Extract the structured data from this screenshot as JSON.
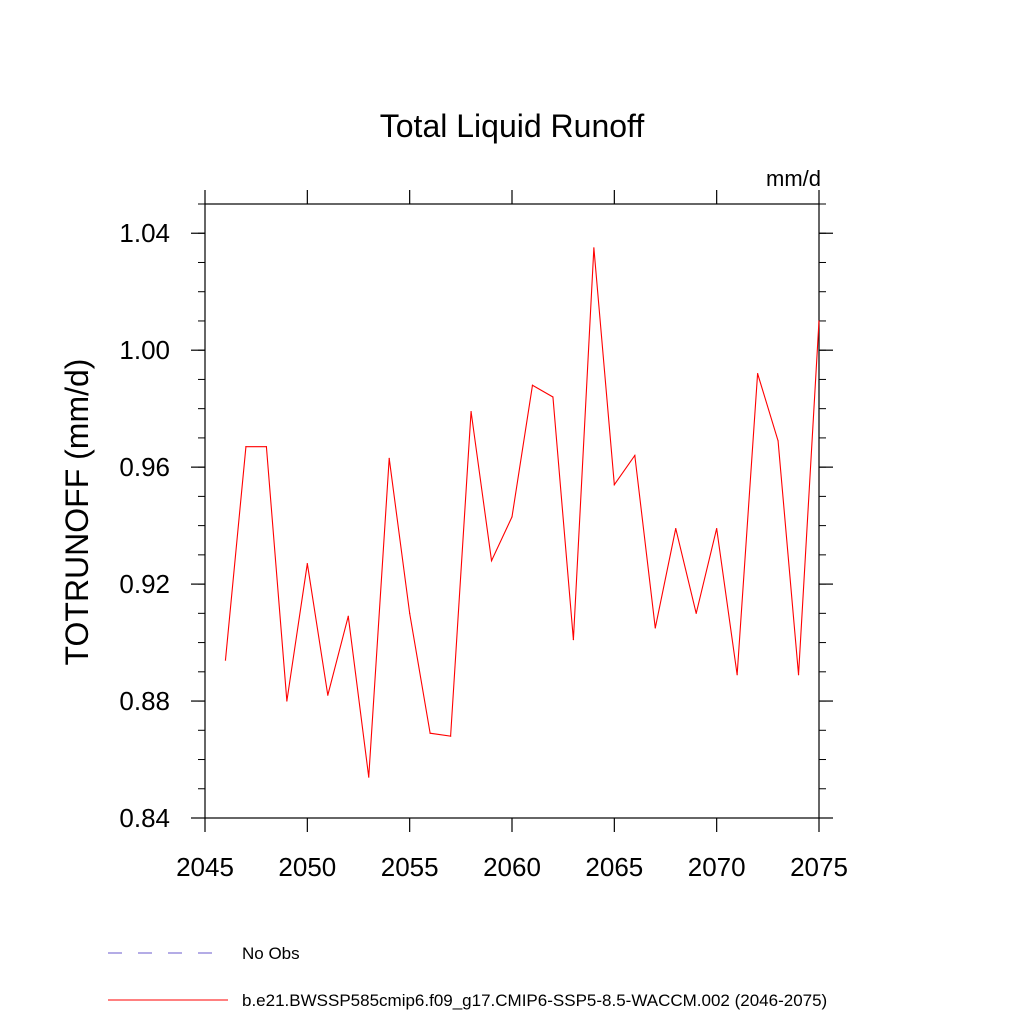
{
  "chart_data": {
    "type": "line",
    "title": "Total Liquid Runoff",
    "units_label": "mm/d",
    "xlabel": "",
    "ylabel": "TOTRUNOFF  (mm/d)",
    "xlim": [
      2045,
      2075
    ],
    "ylim": [
      0.84,
      1.05
    ],
    "x_ticks": [
      2045,
      2050,
      2055,
      2060,
      2065,
      2070,
      2075
    ],
    "x_tick_labels": [
      "2045",
      "2050",
      "2055",
      "2060",
      "2065",
      "2070",
      "2075"
    ],
    "y_ticks": [
      0.84,
      0.88,
      0.92,
      0.96,
      1.0,
      1.04
    ],
    "y_tick_labels": [
      "0.84",
      "0.88",
      "0.92",
      "0.96",
      "1.00",
      "1.04"
    ],
    "grid": false,
    "series": [
      {
        "name": "b.e21.BWSSP585cmip6.f09_g17.CMIP6-SSP5-8.5-WACCM.002 (2046-2075)",
        "color": "#ff0000",
        "x": [
          2046,
          2047,
          2048,
          2049,
          2050,
          2051,
          2052,
          2053,
          2054,
          2055,
          2056,
          2057,
          2058,
          2059,
          2060,
          2061,
          2062,
          2063,
          2064,
          2065,
          2066,
          2067,
          2068,
          2069,
          2070,
          2071,
          2072,
          2073,
          2074,
          2075
        ],
        "values": [
          0.894,
          0.967,
          0.967,
          0.88,
          0.927,
          0.882,
          0.909,
          0.854,
          0.963,
          0.91,
          0.869,
          0.868,
          0.979,
          0.928,
          0.943,
          0.988,
          0.984,
          0.901,
          1.035,
          0.954,
          0.964,
          0.905,
          0.939,
          0.91,
          0.939,
          0.889,
          0.992,
          0.969,
          0.889,
          1.01
        ]
      }
    ],
    "legend": [
      {
        "label": "No Obs",
        "color": "#6a5acd",
        "style": "dashed"
      },
      {
        "label": "b.e21.BWSSP585cmip6.f09_g17.CMIP6-SSP5-8.5-WACCM.002 (2046-2075)",
        "color": "#ff0000",
        "style": "solid"
      }
    ],
    "legend_position": "bottom"
  }
}
